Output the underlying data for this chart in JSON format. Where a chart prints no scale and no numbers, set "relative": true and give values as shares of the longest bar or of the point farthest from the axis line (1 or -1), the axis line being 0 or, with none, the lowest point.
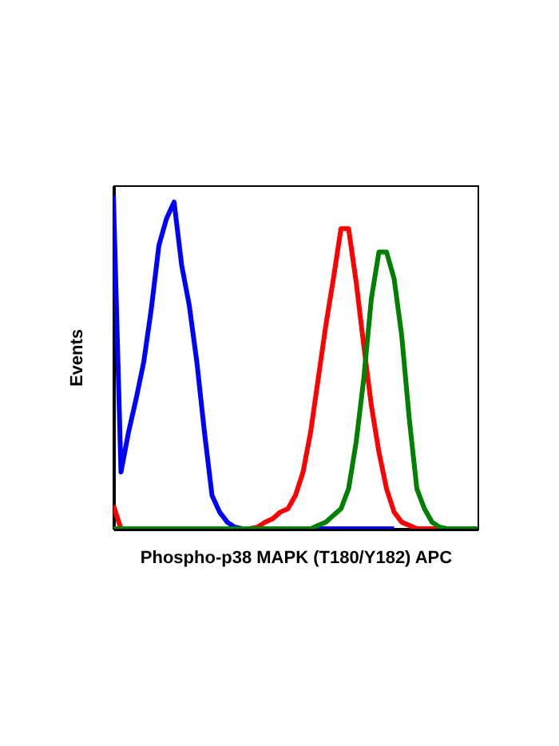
{
  "chart_data": {
    "type": "line",
    "relative": true,
    "tick_labels": false,
    "grid": false,
    "xlabel": "Phospho-p38 MAPK (T180/Y182) APC",
    "ylabel": "Events",
    "categories": [
      null,
      null,
      null,
      null,
      null,
      null,
      null,
      null,
      null,
      null,
      null,
      null,
      null,
      null,
      null,
      null,
      null,
      null,
      null,
      null,
      null,
      null,
      null,
      null,
      null,
      null,
      null,
      null,
      null,
      null,
      null,
      null,
      null,
      null,
      null,
      null,
      null,
      null,
      null,
      null,
      null,
      null,
      null,
      null,
      null,
      null,
      null,
      null,
      null
    ],
    "series": [
      {
        "color": "#0000ff",
        "values": [
          1.0,
          0.17,
          0.29,
          0.39,
          0.5,
          0.66,
          0.85,
          0.93,
          0.98,
          0.79,
          0.67,
          0.5,
          0.29,
          0.1,
          0.05,
          0.02,
          0.005,
          0,
          0,
          0,
          0,
          0,
          0,
          0,
          0,
          0,
          0,
          0,
          0,
          0,
          0,
          0,
          0,
          0,
          0,
          0,
          0,
          0,
          null,
          null,
          null,
          null,
          null,
          null,
          null,
          null,
          null,
          null,
          null
        ]
      },
      {
        "color": "#ff0000",
        "values": [
          0.07,
          0,
          0,
          0,
          0,
          0,
          0,
          0,
          0,
          0,
          0,
          0,
          0,
          0,
          0,
          0,
          0,
          0,
          0,
          0.005,
          0.02,
          0.03,
          0.05,
          0.06,
          0.1,
          0.17,
          0.29,
          0.45,
          0.61,
          0.75,
          0.9,
          0.9,
          0.74,
          0.55,
          0.37,
          0.23,
          0.12,
          0.05,
          0.02,
          0.01,
          0,
          0,
          0,
          0,
          0,
          null,
          null,
          null,
          null
        ]
      },
      {
        "color": "#008000",
        "values": [
          0,
          0,
          0,
          0,
          0,
          0,
          0,
          0,
          0,
          0,
          0,
          0,
          0,
          0,
          0,
          0,
          0,
          0,
          0,
          0,
          0,
          0,
          0,
          0,
          0,
          0,
          0,
          0.01,
          0.02,
          0.04,
          0.06,
          0.12,
          0.26,
          0.45,
          0.69,
          0.83,
          0.83,
          0.75,
          0.58,
          0.33,
          0.12,
          0.06,
          0.02,
          0.005,
          0,
          0,
          0,
          0,
          0
        ]
      }
    ]
  }
}
